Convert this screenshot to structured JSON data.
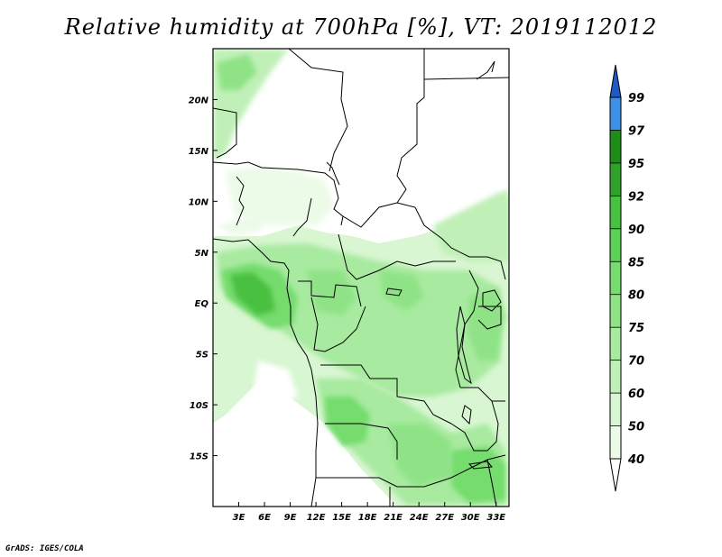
{
  "title": "Relative humidity at 700hPa [%], VT: 2019112012",
  "footer": "GrADS: IGES/COLA",
  "map": {
    "variable": "Relative humidity",
    "level": "700hPa",
    "units": "%",
    "valid_time": "2019112012",
    "lon_range": [
      0,
      34.5
    ],
    "lat_range": [
      -20,
      25
    ],
    "lon_ticks": [
      "3E",
      "6E",
      "9E",
      "12E",
      "15E",
      "18E",
      "21E",
      "24E",
      "27E",
      "30E",
      "33E"
    ],
    "lat_ticks": [
      "20N",
      "15N",
      "10N",
      "5N",
      "EQ",
      "5S",
      "10S",
      "15S"
    ]
  },
  "colorbar": {
    "levels": [
      "40",
      "50",
      "60",
      "70",
      "75",
      "80",
      "85",
      "90",
      "92",
      "95",
      "97",
      "99"
    ],
    "colors": [
      "#ffffff",
      "#ecfbe8",
      "#d8f6d1",
      "#c0f0b7",
      "#a8eaa0",
      "#8fe386",
      "#75dc6d",
      "#5dd155",
      "#48c041",
      "#30a12b",
      "#1f8c1a",
      "#3c91e6",
      "#2a72d8",
      "#1f5ac2"
    ]
  },
  "chart_data": {
    "type": "heatmap",
    "title": "Relative humidity at 700hPa [%], VT: 2019112012",
    "x_ticks": [
      "3E",
      "6E",
      "9E",
      "12E",
      "15E",
      "18E",
      "21E",
      "24E",
      "27E",
      "30E",
      "33E"
    ],
    "y_ticks": [
      "20N",
      "15N",
      "10N",
      "5N",
      "EQ",
      "5S",
      "10S",
      "15S"
    ],
    "xlim": [
      0,
      34.5
    ],
    "ylim": [
      -20,
      25
    ],
    "legend_levels": [
      40,
      50,
      60,
      70,
      75,
      80,
      85,
      90,
      92,
      95,
      97,
      99
    ],
    "legend_position": "right"
  }
}
